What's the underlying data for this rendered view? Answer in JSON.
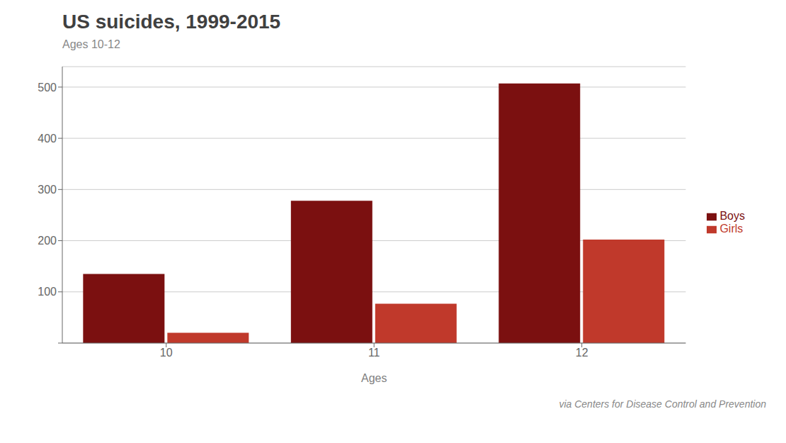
{
  "chart_data": {
    "type": "bar",
    "title": "US suicides, 1999-2015",
    "subtitle": "Ages 10-12",
    "xlabel": "Ages",
    "categories": [
      "10",
      "11",
      "12"
    ],
    "series": [
      {
        "name": "Boys",
        "color": "#7b1010",
        "values": [
          135,
          278,
          507
        ]
      },
      {
        "name": "Girls",
        "color": "#c0392b",
        "values": [
          20,
          77,
          202
        ]
      }
    ],
    "ylim": [
      0,
      540
    ],
    "yticks": [
      {
        "value": 0,
        "label": ""
      },
      100,
      200,
      300,
      400,
      500
    ],
    "grid": true,
    "legend": "right",
    "annotation": "via Centers for Disease Control and Prevention"
  }
}
